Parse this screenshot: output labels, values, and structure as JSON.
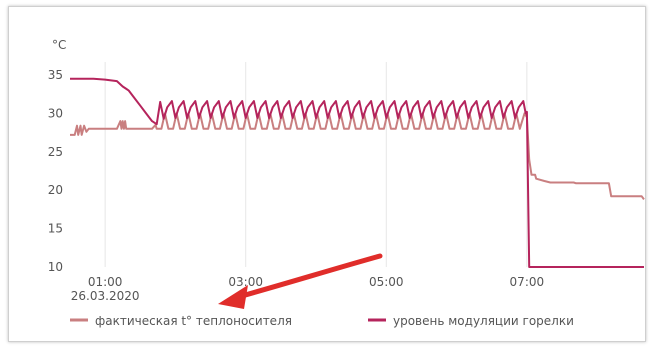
{
  "chart_data": {
    "type": "line",
    "unit_label": "°C",
    "ylim": [
      10,
      35
    ],
    "yticks": [
      10,
      15,
      20,
      25,
      30,
      35
    ],
    "xlim": [
      "00:30",
      "08:40"
    ],
    "xticks": [
      {
        "t": "01:00",
        "label": "01:00",
        "sublabel": "26.03.2020"
      },
      {
        "t": "03:00",
        "label": "03:00",
        "sublabel": ""
      },
      {
        "t": "05:00",
        "label": "05:00",
        "sublabel": ""
      },
      {
        "t": "07:00",
        "label": "07:00",
        "sublabel": ""
      }
    ],
    "grid": "vertical",
    "legend_position": "bottom",
    "colors": {
      "fact": "#c97f80",
      "modulation": "#b5245c",
      "arrow": "#e02d2a"
    },
    "series": [
      {
        "name": "фактическая t° теплоносителя",
        "color": "#c97f80",
        "points": [
          [
            "00:30",
            27.2
          ],
          [
            "00:34",
            27.2
          ],
          [
            "00:36",
            28.4
          ],
          [
            "00:37",
            27.2
          ],
          [
            "00:39",
            28.4
          ],
          [
            "00:40",
            27.2
          ],
          [
            "00:42",
            28.4
          ],
          [
            "00:44",
            27.6
          ],
          [
            "00:46",
            28.0
          ],
          [
            "01:10",
            28.0
          ],
          [
            "01:13",
            29.0
          ],
          [
            "01:14",
            28.0
          ],
          [
            "01:15",
            29.0
          ],
          [
            "01:16",
            28.0
          ],
          [
            "01:17",
            29.0
          ],
          [
            "01:18",
            28.0
          ],
          [
            "01:40",
            28.0
          ],
          [
            "01:43",
            28.5
          ],
          [
            "01:44",
            28.0
          ],
          [
            "01:48",
            28.0
          ],
          [
            "01:51",
            30.0
          ],
          [
            "01:54",
            28.0
          ],
          [
            "01:58",
            28.0
          ],
          [
            "02:01",
            30.0
          ],
          [
            "02:04",
            28.0
          ],
          [
            "02:08",
            28.0
          ],
          [
            "02:11",
            30.0
          ],
          [
            "02:14",
            28.0
          ],
          [
            "02:18",
            28.0
          ],
          [
            "02:21",
            30.0
          ],
          [
            "02:24",
            28.0
          ],
          [
            "02:28",
            28.0
          ],
          [
            "02:31",
            30.0
          ],
          [
            "02:34",
            28.0
          ],
          [
            "02:38",
            28.0
          ],
          [
            "02:41",
            30.0
          ],
          [
            "02:44",
            28.0
          ],
          [
            "02:48",
            28.0
          ],
          [
            "02:51",
            30.0
          ],
          [
            "02:54",
            28.0
          ],
          [
            "02:58",
            28.0
          ],
          [
            "03:01",
            30.0
          ],
          [
            "03:04",
            28.0
          ],
          [
            "03:08",
            28.0
          ],
          [
            "03:11",
            30.0
          ],
          [
            "03:14",
            28.0
          ],
          [
            "03:18",
            28.0
          ],
          [
            "03:21",
            30.0
          ],
          [
            "03:24",
            28.0
          ],
          [
            "03:28",
            28.0
          ],
          [
            "03:31",
            30.0
          ],
          [
            "03:34",
            28.0
          ],
          [
            "03:38",
            28.0
          ],
          [
            "03:41",
            30.0
          ],
          [
            "03:44",
            28.0
          ],
          [
            "03:48",
            28.0
          ],
          [
            "03:51",
            30.0
          ],
          [
            "03:54",
            28.0
          ],
          [
            "03:58",
            28.0
          ],
          [
            "04:01",
            30.0
          ],
          [
            "04:04",
            28.0
          ],
          [
            "04:08",
            28.0
          ],
          [
            "04:11",
            30.0
          ],
          [
            "04:14",
            28.0
          ],
          [
            "04:18",
            28.0
          ],
          [
            "04:21",
            30.0
          ],
          [
            "04:24",
            28.0
          ],
          [
            "04:28",
            28.0
          ],
          [
            "04:31",
            30.0
          ],
          [
            "04:34",
            28.0
          ],
          [
            "04:38",
            28.0
          ],
          [
            "04:41",
            30.0
          ],
          [
            "04:44",
            28.0
          ],
          [
            "04:48",
            28.0
          ],
          [
            "04:51",
            30.0
          ],
          [
            "04:54",
            28.0
          ],
          [
            "04:58",
            28.0
          ],
          [
            "05:01",
            30.0
          ],
          [
            "05:04",
            28.0
          ],
          [
            "05:08",
            28.0
          ],
          [
            "05:11",
            30.0
          ],
          [
            "05:14",
            28.0
          ],
          [
            "05:18",
            28.0
          ],
          [
            "05:21",
            30.0
          ],
          [
            "05:24",
            28.0
          ],
          [
            "05:28",
            28.0
          ],
          [
            "05:31",
            30.0
          ],
          [
            "05:34",
            28.0
          ],
          [
            "05:38",
            28.0
          ],
          [
            "05:41",
            30.0
          ],
          [
            "05:44",
            28.0
          ],
          [
            "05:48",
            28.0
          ],
          [
            "05:51",
            30.0
          ],
          [
            "05:54",
            28.0
          ],
          [
            "05:58",
            28.0
          ],
          [
            "06:01",
            30.0
          ],
          [
            "06:04",
            28.0
          ],
          [
            "06:08",
            28.0
          ],
          [
            "06:11",
            30.0
          ],
          [
            "06:14",
            28.0
          ],
          [
            "06:18",
            28.0
          ],
          [
            "06:21",
            30.0
          ],
          [
            "06:24",
            28.0
          ],
          [
            "06:28",
            28.0
          ],
          [
            "06:31",
            30.0
          ],
          [
            "06:34",
            28.0
          ],
          [
            "06:38",
            28.0
          ],
          [
            "06:41",
            30.0
          ],
          [
            "06:44",
            28.0
          ],
          [
            "06:48",
            28.0
          ],
          [
            "06:51",
            30.0
          ],
          [
            "06:54",
            28.0
          ],
          [
            "06:58",
            30.0
          ],
          [
            "07:00",
            29.5
          ],
          [
            "07:02",
            24.0
          ],
          [
            "07:04",
            22.0
          ],
          [
            "07:07",
            22.0
          ],
          [
            "07:08",
            21.5
          ],
          [
            "07:15",
            21.2
          ],
          [
            "07:20",
            21.0
          ],
          [
            "07:40",
            21.0
          ],
          [
            "07:42",
            20.9
          ],
          [
            "08:10",
            20.9
          ],
          [
            "08:12",
            19.2
          ],
          [
            "08:38",
            19.2
          ],
          [
            "08:40",
            18.8
          ]
        ]
      },
      {
        "name": "уровень модуляции горелки",
        "color": "#b5245c",
        "points": [
          [
            "00:30",
            34.5
          ],
          [
            "00:50",
            34.5
          ],
          [
            "01:00",
            34.4
          ],
          [
            "01:10",
            34.2
          ],
          [
            "01:15",
            33.5
          ],
          [
            "01:20",
            33.0
          ],
          [
            "01:25",
            32.0
          ],
          [
            "01:30",
            31.0
          ],
          [
            "01:35",
            30.0
          ],
          [
            "01:40",
            29.0
          ],
          [
            "01:44",
            28.6
          ],
          [
            "01:47",
            31.5
          ],
          [
            "01:50",
            29.3
          ],
          [
            "01:53",
            30.8
          ],
          [
            "01:57",
            31.6
          ],
          [
            "02:00",
            29.4
          ],
          [
            "02:03",
            30.8
          ],
          [
            "02:07",
            31.6
          ],
          [
            "02:10",
            29.4
          ],
          [
            "02:13",
            30.8
          ],
          [
            "02:17",
            31.6
          ],
          [
            "02:20",
            29.4
          ],
          [
            "02:23",
            30.8
          ],
          [
            "02:27",
            31.6
          ],
          [
            "02:30",
            29.4
          ],
          [
            "02:33",
            30.8
          ],
          [
            "02:37",
            31.6
          ],
          [
            "02:40",
            29.4
          ],
          [
            "02:43",
            30.8
          ],
          [
            "02:47",
            31.6
          ],
          [
            "02:50",
            29.4
          ],
          [
            "02:53",
            30.8
          ],
          [
            "02:57",
            31.6
          ],
          [
            "03:00",
            29.4
          ],
          [
            "03:03",
            30.8
          ],
          [
            "03:07",
            31.6
          ],
          [
            "03:10",
            29.4
          ],
          [
            "03:13",
            30.8
          ],
          [
            "03:17",
            31.6
          ],
          [
            "03:20",
            29.4
          ],
          [
            "03:23",
            30.8
          ],
          [
            "03:27",
            31.6
          ],
          [
            "03:30",
            29.4
          ],
          [
            "03:33",
            30.8
          ],
          [
            "03:37",
            31.6
          ],
          [
            "03:40",
            29.4
          ],
          [
            "03:43",
            30.8
          ],
          [
            "03:47",
            31.6
          ],
          [
            "03:50",
            29.4
          ],
          [
            "03:53",
            30.8
          ],
          [
            "03:57",
            31.6
          ],
          [
            "04:00",
            29.4
          ],
          [
            "04:03",
            30.8
          ],
          [
            "04:07",
            31.6
          ],
          [
            "04:10",
            29.4
          ],
          [
            "04:13",
            30.8
          ],
          [
            "04:17",
            31.6
          ],
          [
            "04:20",
            29.4
          ],
          [
            "04:23",
            30.8
          ],
          [
            "04:27",
            31.6
          ],
          [
            "04:30",
            29.4
          ],
          [
            "04:33",
            30.8
          ],
          [
            "04:37",
            31.6
          ],
          [
            "04:40",
            29.4
          ],
          [
            "04:43",
            30.8
          ],
          [
            "04:47",
            31.6
          ],
          [
            "04:50",
            29.4
          ],
          [
            "04:53",
            30.8
          ],
          [
            "04:57",
            31.6
          ],
          [
            "05:00",
            29.4
          ],
          [
            "05:03",
            30.8
          ],
          [
            "05:07",
            31.6
          ],
          [
            "05:10",
            29.4
          ],
          [
            "05:13",
            30.8
          ],
          [
            "05:17",
            31.6
          ],
          [
            "05:20",
            29.4
          ],
          [
            "05:23",
            30.8
          ],
          [
            "05:27",
            31.6
          ],
          [
            "05:30",
            29.4
          ],
          [
            "05:33",
            30.8
          ],
          [
            "05:37",
            31.6
          ],
          [
            "05:40",
            29.4
          ],
          [
            "05:43",
            30.8
          ],
          [
            "05:47",
            31.6
          ],
          [
            "05:50",
            29.4
          ],
          [
            "05:53",
            30.8
          ],
          [
            "05:57",
            31.6
          ],
          [
            "06:00",
            29.4
          ],
          [
            "06:03",
            30.8
          ],
          [
            "06:07",
            31.6
          ],
          [
            "06:10",
            29.4
          ],
          [
            "06:13",
            30.8
          ],
          [
            "06:17",
            31.6
          ],
          [
            "06:20",
            29.4
          ],
          [
            "06:23",
            30.8
          ],
          [
            "06:27",
            31.6
          ],
          [
            "06:30",
            29.4
          ],
          [
            "06:33",
            30.8
          ],
          [
            "06:37",
            31.6
          ],
          [
            "06:40",
            29.4
          ],
          [
            "06:43",
            30.8
          ],
          [
            "06:47",
            31.6
          ],
          [
            "06:50",
            29.4
          ],
          [
            "06:53",
            30.8
          ],
          [
            "06:57",
            31.6
          ],
          [
            "06:59",
            30.0
          ],
          [
            "07:00",
            30.2
          ],
          [
            "07:02",
            10.0
          ],
          [
            "08:40",
            10.0
          ]
        ]
      }
    ]
  }
}
